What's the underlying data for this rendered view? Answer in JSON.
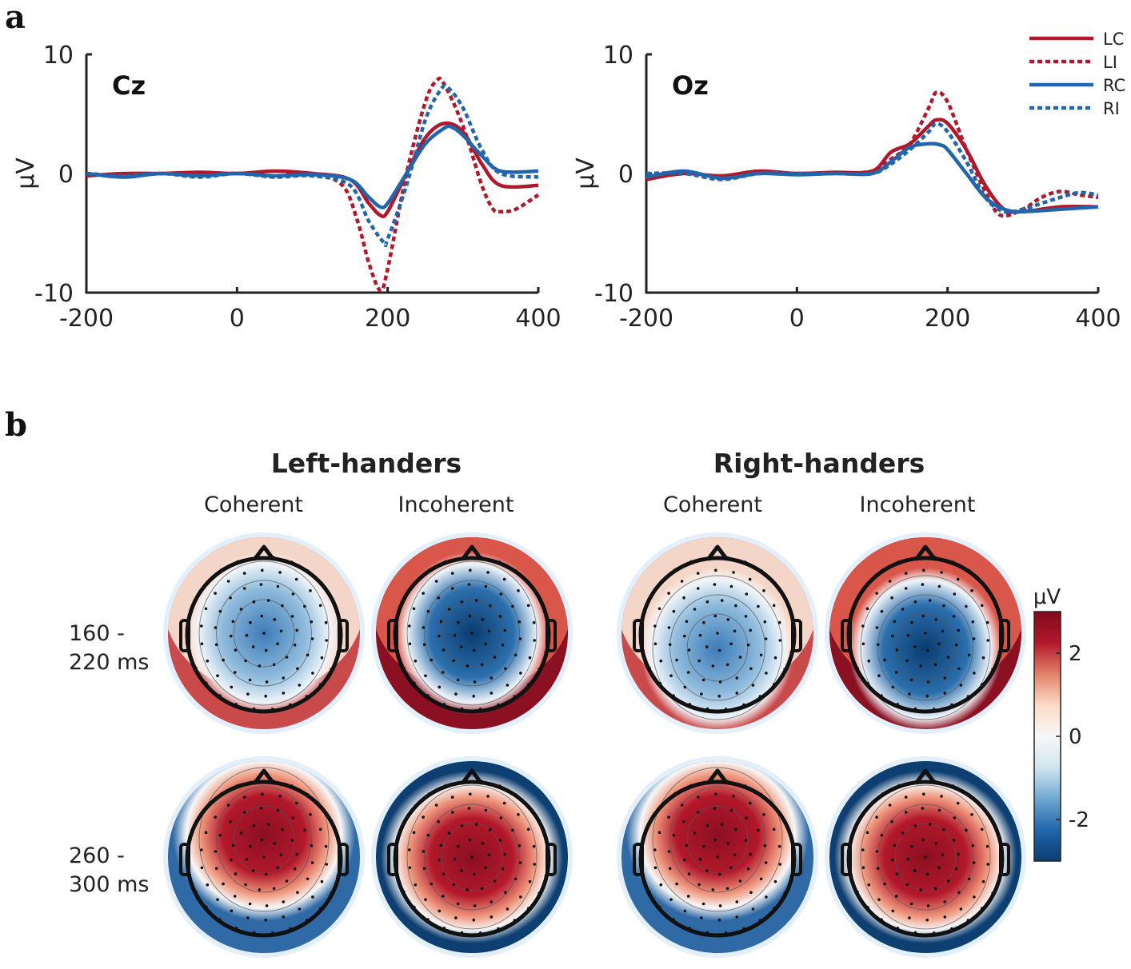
{
  "panels": {
    "a": "a",
    "b": "b"
  },
  "chart_data": [
    {
      "type": "line",
      "title": "Cz",
      "xlabel": "",
      "ylabel": "μV",
      "xlim": [
        -200,
        400
      ],
      "ylim": [
        -10,
        10
      ],
      "xticks": [
        "-200",
        "0",
        "200",
        "400"
      ],
      "yticks": [
        "10",
        "0",
        "-10"
      ],
      "series": [
        {
          "name": "LC",
          "color": "#b2182b",
          "style": "solid",
          "x": [
            -200,
            -150,
            -100,
            -50,
            0,
            50,
            100,
            150,
            175,
            190,
            200,
            225,
            250,
            275,
            300,
            325,
            350,
            400
          ],
          "y": [
            -0.2,
            0,
            0,
            0.1,
            0,
            0.2,
            0,
            -0.5,
            -2.5,
            -3.5,
            -3.2,
            0,
            3,
            4.2,
            3.5,
            0.8,
            -1,
            -1
          ]
        },
        {
          "name": "LI",
          "color": "#b2182b",
          "style": "dotted",
          "x": [
            -200,
            -150,
            -100,
            -50,
            0,
            50,
            100,
            140,
            160,
            175,
            190,
            200,
            225,
            250,
            265,
            275,
            300,
            325,
            340,
            350,
            370,
            400
          ],
          "y": [
            0,
            -0.2,
            0,
            0,
            0,
            -0.2,
            0,
            -1,
            -4,
            -7.5,
            -9.8,
            -8,
            0,
            6,
            7.8,
            7.5,
            4,
            -1,
            -3,
            -3.2,
            -3,
            -1.8
          ]
        },
        {
          "name": "RC",
          "color": "#2166ac",
          "style": "solid",
          "x": [
            -200,
            -150,
            -100,
            -50,
            0,
            50,
            100,
            150,
            175,
            190,
            200,
            225,
            250,
            275,
            285,
            300,
            325,
            350,
            400
          ],
          "y": [
            0,
            -0.3,
            0,
            -0.2,
            0,
            -0.2,
            -0.1,
            -0.5,
            -2,
            -2.8,
            -2.5,
            0,
            2.5,
            3.8,
            3.9,
            3.2,
            1.5,
            0.2,
            0.2
          ]
        },
        {
          "name": "RI",
          "color": "#2166ac",
          "style": "dotted",
          "x": [
            -200,
            -150,
            -100,
            -50,
            0,
            50,
            100,
            150,
            175,
            195,
            200,
            225,
            250,
            270,
            280,
            300,
            325,
            350,
            400
          ],
          "y": [
            0,
            -0.2,
            0,
            -0.3,
            0,
            -0.3,
            -0.2,
            -1,
            -4,
            -5.8,
            -5.5,
            -1,
            4.5,
            7,
            7.2,
            5.5,
            2,
            0,
            -0.3
          ]
        }
      ]
    },
    {
      "type": "line",
      "title": "Oz",
      "xlabel": "",
      "ylabel": "μV",
      "xlim": [
        -200,
        400
      ],
      "ylim": [
        -10,
        10
      ],
      "xticks": [
        "-200",
        "0",
        "200",
        "400"
      ],
      "yticks": [
        "10",
        "0",
        "-10"
      ],
      "legend": {
        "position": "top-right",
        "entries": [
          "LC",
          "LI",
          "RC",
          "RI"
        ]
      },
      "series": [
        {
          "name": "LC",
          "color": "#b2182b",
          "style": "solid",
          "x": [
            -200,
            -150,
            -100,
            -50,
            0,
            50,
            100,
            125,
            150,
            175,
            185,
            200,
            225,
            250,
            275,
            300,
            350,
            400
          ],
          "y": [
            -0.5,
            0,
            -0.2,
            0.2,
            0,
            0.1,
            0.2,
            1.8,
            2.5,
            4,
            4.5,
            4.2,
            2,
            -1,
            -3,
            -3.2,
            -2.8,
            -2.8
          ]
        },
        {
          "name": "LI",
          "color": "#b2182b",
          "style": "dotted",
          "x": [
            -200,
            -150,
            -100,
            -50,
            0,
            50,
            100,
            125,
            150,
            175,
            185,
            200,
            225,
            250,
            270,
            300,
            325,
            350,
            375,
            400
          ],
          "y": [
            -0.5,
            0,
            -0.3,
            0,
            0,
            0,
            0.2,
            1.2,
            2.5,
            5.5,
            6.8,
            6,
            2,
            -1.5,
            -3.5,
            -3,
            -2,
            -1.5,
            -1.8,
            -2
          ]
        },
        {
          "name": "RC",
          "color": "#2166ac",
          "style": "solid",
          "x": [
            -200,
            -150,
            -100,
            -50,
            0,
            50,
            100,
            125,
            150,
            175,
            190,
            200,
            225,
            250,
            275,
            300,
            350,
            400
          ],
          "y": [
            -0.3,
            0.2,
            -0.4,
            0,
            -0.1,
            0,
            0,
            1,
            2.2,
            2.5,
            2.4,
            2,
            0,
            -2,
            -3,
            -3.2,
            -3,
            -2.8
          ]
        },
        {
          "name": "RI",
          "color": "#2166ac",
          "style": "dotted",
          "x": [
            -200,
            -150,
            -100,
            -50,
            0,
            50,
            100,
            125,
            150,
            175,
            185,
            200,
            225,
            250,
            275,
            300,
            325,
            350,
            375,
            400
          ],
          "y": [
            0,
            0,
            -0.5,
            0,
            0,
            0,
            0,
            0.8,
            2,
            3.5,
            4.2,
            3.5,
            1,
            -2,
            -3.2,
            -3,
            -2.5,
            -2,
            -1.6,
            -1.8
          ]
        }
      ]
    }
  ],
  "topomaps": {
    "groups": [
      "Left-handers",
      "Right-handers"
    ],
    "conditions": [
      "Coherent",
      "Incoherent"
    ],
    "time_windows": [
      {
        "line1": "160 -",
        "line2": "220 ms"
      },
      {
        "line1": "260 -",
        "line2": "300 ms"
      }
    ],
    "colorbar": {
      "label": "μV",
      "ticks": [
        "2",
        "0",
        "-2"
      ],
      "range": [
        -3,
        3
      ],
      "colors": [
        "#0b3c6f",
        "#2166ac",
        "#6fa8d0",
        "#d1e5f0",
        "#f7f7f7",
        "#fddbc7",
        "#e0826a",
        "#b2182b",
        "#7f0b1d"
      ]
    }
  }
}
